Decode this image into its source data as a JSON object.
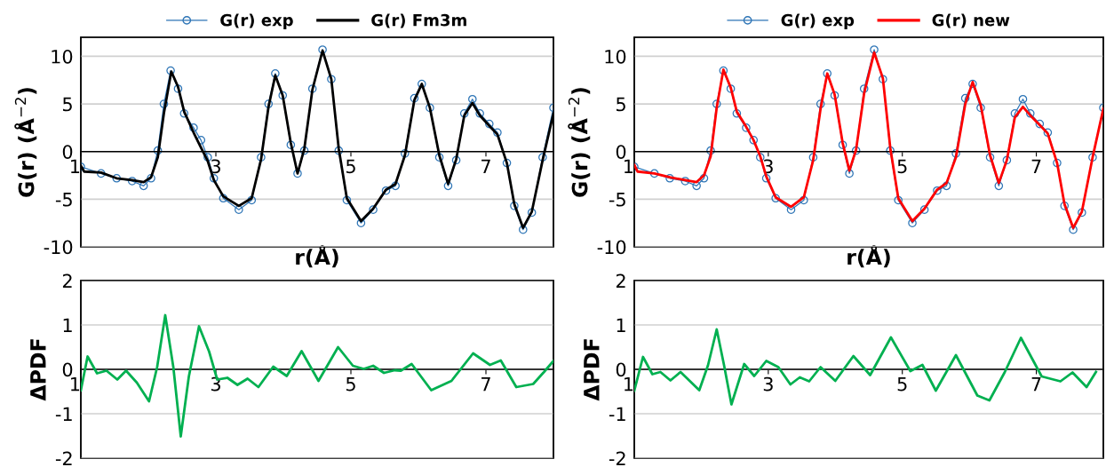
{
  "chart_data": [
    {
      "type": "line",
      "xlabel": "r(Å)",
      "ylabel": "G(r) (Å$^{−2}$)",
      "xlim": [
        1,
        8
      ],
      "xticks": [
        1,
        3,
        5,
        7
      ],
      "ylim": [
        -10,
        12
      ],
      "yticks": [
        -10,
        -5,
        0,
        5,
        10
      ],
      "grid": "y",
      "legend": "top",
      "series": [
        {
          "name": "G(r) exp",
          "color": "#2e75b6",
          "marker": "circle",
          "x": [
            1.0,
            1.3,
            1.53,
            1.76,
            1.93,
            2.04,
            2.14,
            2.23,
            2.33,
            2.44,
            2.53,
            2.67,
            2.78,
            2.88,
            2.97,
            3.11,
            3.34,
            3.53,
            3.67,
            3.78,
            3.88,
            3.99,
            4.11,
            4.21,
            4.31,
            4.43,
            4.58,
            4.71,
            4.82,
            4.94,
            5.15,
            5.33,
            5.52,
            5.66,
            5.8,
            5.94,
            6.05,
            6.17,
            6.31,
            6.44,
            6.56,
            6.68,
            6.8,
            6.91,
            7.05,
            7.17,
            7.31,
            7.42,
            7.55,
            7.68,
            7.84,
            8.0
          ],
          "values": [
            -1.6,
            -2.3,
            -2.8,
            -3.1,
            -3.6,
            -2.8,
            0.1,
            5.0,
            8.5,
            6.6,
            4.0,
            2.5,
            1.2,
            -0.6,
            -2.8,
            -4.9,
            -6.1,
            -5.1,
            -0.6,
            5.0,
            8.2,
            5.9,
            0.7,
            -2.3,
            0.1,
            6.6,
            10.7,
            7.6,
            0.1,
            -5.1,
            -7.5,
            -6.1,
            -4.1,
            -3.6,
            -0.2,
            5.6,
            7.1,
            4.6,
            -0.6,
            -3.6,
            -0.9,
            4.0,
            5.5,
            4.0,
            2.9,
            2.0,
            -1.2,
            -5.7,
            -8.2,
            -6.4,
            -0.6,
            4.6
          ]
        },
        {
          "name": "G(r) Fm3m",
          "color": "#000000",
          "marker": "none",
          "x": [
            1.0,
            1.05,
            1.3,
            1.53,
            1.76,
            1.93,
            2.04,
            2.14,
            2.23,
            2.34,
            2.44,
            2.53,
            2.67,
            2.78,
            2.88,
            2.97,
            3.11,
            3.34,
            3.53,
            3.67,
            3.78,
            3.88,
            3.99,
            4.11,
            4.21,
            4.31,
            4.43,
            4.58,
            4.71,
            4.82,
            4.94,
            5.15,
            5.33,
            5.52,
            5.66,
            5.8,
            5.94,
            6.05,
            6.17,
            6.31,
            6.44,
            6.56,
            6.68,
            6.8,
            6.91,
            7.05,
            7.17,
            7.31,
            7.42,
            7.55,
            7.68,
            7.84,
            8.0
          ],
          "values": [
            -1.5,
            -2.1,
            -2.2,
            -2.8,
            -3.0,
            -3.2,
            -2.7,
            -0.6,
            4.0,
            8.4,
            6.8,
            4.2,
            2.0,
            0.4,
            -1.0,
            -3.0,
            -4.7,
            -5.7,
            -4.9,
            -0.8,
            4.7,
            8.0,
            5.9,
            0.9,
            -2.3,
            0.3,
            6.5,
            10.6,
            7.6,
            0.3,
            -4.9,
            -7.3,
            -6.0,
            -4.0,
            -3.4,
            -0.4,
            5.4,
            7.1,
            4.6,
            -0.4,
            -3.4,
            -0.8,
            3.8,
            5.1,
            3.8,
            2.7,
            1.8,
            -1.2,
            -5.5,
            -8.0,
            -6.3,
            -0.9,
            4.0
          ]
        }
      ]
    },
    {
      "type": "line",
      "xlabel": "r(Å)",
      "ylabel": "G(r) (Å$^{−2}$)",
      "xlim": [
        1,
        8
      ],
      "xticks": [
        1,
        3,
        5,
        7
      ],
      "ylim": [
        -10,
        12
      ],
      "yticks": [
        -10,
        -5,
        0,
        5,
        10
      ],
      "grid": "y",
      "legend": "top",
      "series": [
        {
          "name": "G(r) exp",
          "color": "#2e75b6",
          "marker": "circle",
          "x": [
            1.0,
            1.3,
            1.53,
            1.76,
            1.93,
            2.04,
            2.14,
            2.23,
            2.33,
            2.44,
            2.53,
            2.67,
            2.78,
            2.88,
            2.97,
            3.11,
            3.34,
            3.53,
            3.67,
            3.78,
            3.88,
            3.99,
            4.11,
            4.21,
            4.31,
            4.43,
            4.58,
            4.71,
            4.82,
            4.94,
            5.15,
            5.33,
            5.52,
            5.66,
            5.8,
            5.94,
            6.05,
            6.17,
            6.31,
            6.44,
            6.56,
            6.68,
            6.8,
            6.91,
            7.05,
            7.17,
            7.31,
            7.42,
            7.55,
            7.68,
            7.84,
            8.0
          ],
          "values": [
            -1.6,
            -2.3,
            -2.8,
            -3.1,
            -3.6,
            -2.8,
            0.1,
            5.0,
            8.5,
            6.6,
            4.0,
            2.5,
            1.2,
            -0.6,
            -2.8,
            -4.9,
            -6.1,
            -5.1,
            -0.6,
            5.0,
            8.2,
            5.9,
            0.7,
            -2.3,
            0.1,
            6.6,
            10.7,
            7.6,
            0.1,
            -5.1,
            -7.5,
            -6.1,
            -4.1,
            -3.6,
            -0.2,
            5.6,
            7.1,
            4.6,
            -0.6,
            -3.6,
            -0.9,
            4.0,
            5.5,
            4.0,
            2.9,
            2.0,
            -1.2,
            -5.7,
            -8.2,
            -6.4,
            -0.6,
            4.6
          ]
        },
        {
          "name": "G(r) new",
          "color": "#ff0000",
          "marker": "none",
          "x": [
            1.0,
            1.05,
            1.3,
            1.53,
            1.76,
            1.93,
            2.04,
            2.14,
            2.23,
            2.33,
            2.44,
            2.53,
            2.67,
            2.78,
            2.88,
            2.97,
            3.11,
            3.34,
            3.53,
            3.67,
            3.78,
            3.88,
            3.99,
            4.11,
            4.21,
            4.31,
            4.43,
            4.58,
            4.71,
            4.82,
            4.94,
            5.15,
            5.33,
            5.52,
            5.66,
            5.8,
            5.94,
            6.05,
            6.17,
            6.31,
            6.44,
            6.56,
            6.68,
            6.8,
            6.91,
            7.05,
            7.17,
            7.31,
            7.42,
            7.55,
            7.68,
            7.84,
            8.0
          ],
          "values": [
            -1.4,
            -2.1,
            -2.3,
            -2.7,
            -3.0,
            -3.2,
            -2.5,
            -0.5,
            4.6,
            8.6,
            6.7,
            4.2,
            2.6,
            1.2,
            -0.5,
            -2.6,
            -4.8,
            -5.8,
            -4.8,
            -0.9,
            4.5,
            8.2,
            6.0,
            0.9,
            -2.0,
            0.2,
            6.1,
            10.4,
            7.7,
            0.4,
            -4.9,
            -7.3,
            -6.0,
            -4.0,
            -3.3,
            -0.6,
            5.0,
            7.3,
            4.9,
            -0.4,
            -3.3,
            -0.9,
            3.6,
            4.7,
            3.8,
            2.8,
            1.9,
            -1.2,
            -5.5,
            -8.0,
            -6.3,
            -0.6,
            4.5
          ]
        }
      ]
    },
    {
      "type": "line",
      "ylabel": "ΔPDF",
      "xlim": [
        1,
        8
      ],
      "xticks": [
        1,
        3,
        5,
        7
      ],
      "ylim": [
        -2,
        2
      ],
      "yticks": [
        -2,
        -1,
        0,
        1,
        2
      ],
      "grid": "y",
      "series": [
        {
          "color": "#00b050",
          "marker": "none",
          "x": [
            1.0,
            1.1,
            1.24,
            1.38,
            1.54,
            1.67,
            1.83,
            2.01,
            2.13,
            2.25,
            2.37,
            2.48,
            2.6,
            2.75,
            2.9,
            3.02,
            3.17,
            3.32,
            3.47,
            3.63,
            3.85,
            4.05,
            4.27,
            4.52,
            4.81,
            5.03,
            5.19,
            5.33,
            5.49,
            5.65,
            5.74,
            5.9,
            6.19,
            6.49,
            6.81,
            7.06,
            7.22,
            7.45,
            7.7,
            7.86,
            8.0
          ],
          "values": [
            -0.47,
            0.29,
            -0.09,
            -0.03,
            -0.23,
            -0.03,
            -0.3,
            -0.72,
            0.05,
            1.22,
            0.05,
            -1.51,
            -0.16,
            0.97,
            0.4,
            -0.23,
            -0.19,
            -0.35,
            -0.21,
            -0.4,
            0.06,
            -0.15,
            0.41,
            -0.26,
            0.5,
            0.08,
            0.01,
            0.08,
            -0.08,
            -0.02,
            -0.03,
            0.12,
            -0.47,
            -0.26,
            0.36,
            0.1,
            0.2,
            -0.4,
            -0.33,
            -0.06,
            0.19
          ]
        }
      ]
    },
    {
      "type": "line",
      "ylabel": "ΔPDF",
      "xlim": [
        1,
        8
      ],
      "xticks": [
        1,
        3,
        5,
        7
      ],
      "ylim": [
        -2,
        2
      ],
      "yticks": [
        -2,
        -1,
        0,
        1,
        2
      ],
      "grid": "y",
      "series": [
        {
          "color": "#00b050",
          "marker": "none",
          "x": [
            1.0,
            1.13,
            1.27,
            1.39,
            1.54,
            1.69,
            1.97,
            2.1,
            2.23,
            2.34,
            2.45,
            2.64,
            2.79,
            2.97,
            3.15,
            3.33,
            3.47,
            3.61,
            3.78,
            4.0,
            4.27,
            4.52,
            4.83,
            5.12,
            5.3,
            5.5,
            5.8,
            6.12,
            6.3,
            6.53,
            6.77,
            7.08,
            7.36,
            7.54,
            7.75,
            7.89
          ],
          "values": [
            -0.48,
            0.28,
            -0.11,
            -0.06,
            -0.25,
            -0.06,
            -0.47,
            0.09,
            0.9,
            0.09,
            -0.79,
            0.12,
            -0.15,
            0.19,
            0.05,
            -0.34,
            -0.18,
            -0.27,
            0.05,
            -0.26,
            0.3,
            -0.13,
            0.72,
            -0.04,
            0.1,
            -0.48,
            0.32,
            -0.59,
            -0.7,
            -0.06,
            0.71,
            -0.16,
            -0.27,
            -0.07,
            -0.4,
            -0.06
          ]
        }
      ]
    }
  ]
}
